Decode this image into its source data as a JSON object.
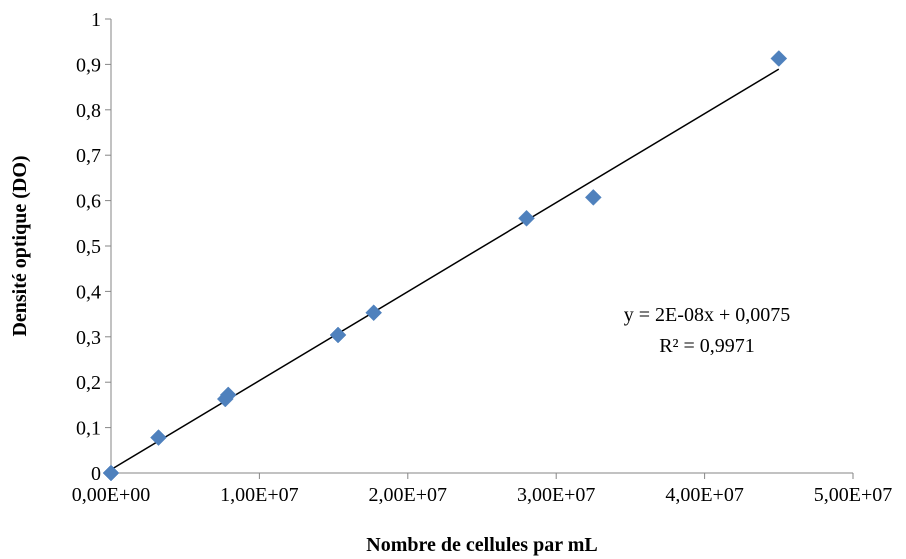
{
  "chart_data": {
    "type": "scatter",
    "xlabel": "Nombre de cellules par mL",
    "ylabel": "Densité optique (DO)",
    "xlim": [
      0,
      50000000
    ],
    "ylim": [
      0,
      1
    ],
    "x_ticks": [
      0,
      10000000,
      20000000,
      30000000,
      40000000,
      50000000
    ],
    "x_tick_labels": [
      "0,00E+00",
      "1,00E+07",
      "2,00E+07",
      "3,00E+07",
      "4,00E+07",
      "5,00E+07"
    ],
    "y_ticks": [
      0,
      0.1,
      0.2,
      0.3,
      0.4,
      0.5,
      0.6,
      0.7,
      0.8,
      0.9,
      1
    ],
    "y_tick_labels": [
      "0",
      "0,1",
      "0,2",
      "0,3",
      "0,4",
      "0,5",
      "0,6",
      "0,7",
      "0,8",
      "0,9",
      "1"
    ],
    "grid": false,
    "marker": "diamond",
    "marker_color": "#4F81BD",
    "series": [
      {
        "points": [
          {
            "x": 0,
            "y": 0
          },
          {
            "x": 3200000,
            "y": 0.078
          },
          {
            "x": 7700000,
            "y": 0.163
          },
          {
            "x": 7900000,
            "y": 0.172
          },
          {
            "x": 15300000,
            "y": 0.304
          },
          {
            "x": 17700000,
            "y": 0.353
          },
          {
            "x": 28000000,
            "y": 0.561
          },
          {
            "x": 32500000,
            "y": 0.607
          },
          {
            "x": 45000000,
            "y": 0.913
          }
        ]
      }
    ],
    "trendline": {
      "type": "linear",
      "x_range": [
        0,
        45000000
      ],
      "slope": 1.96e-08,
      "intercept": 0.0075,
      "color": "#000000"
    },
    "annotations": {
      "equation": "y = 2E-08x + 0,0075",
      "r_squared": "R² = 0,9971"
    }
  }
}
